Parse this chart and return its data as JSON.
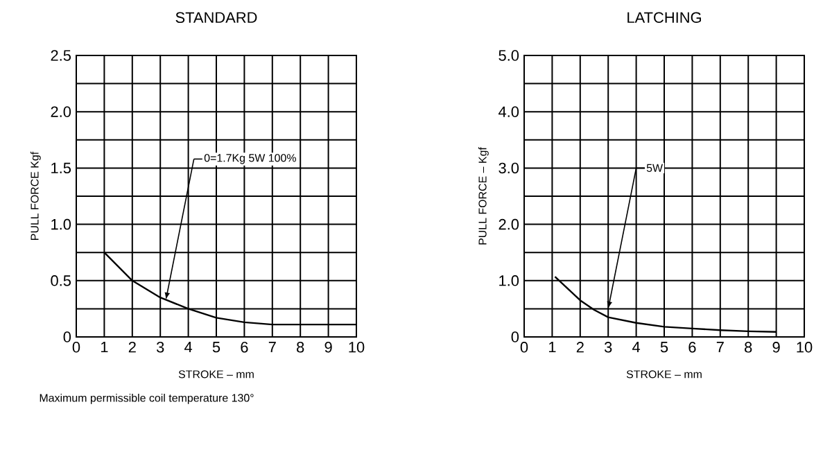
{
  "chart_data": [
    {
      "type": "line",
      "title": "STANDARD",
      "xlabel": "STROKE – mm",
      "ylabel": "PULL FORCE Kgf",
      "x": [
        1,
        2,
        3,
        4,
        5,
        6,
        7,
        8,
        9,
        10
      ],
      "series": [
        {
          "color": "#000000",
          "values": [
            0.75,
            0.5,
            0.35,
            0.25,
            0.17,
            0.13,
            0.11,
            0.11,
            0.11,
            0.11
          ]
        }
      ],
      "xlim": [
        0,
        10
      ],
      "xticks": [
        0,
        1,
        2,
        3,
        4,
        5,
        6,
        7,
        8,
        9,
        10
      ],
      "ylim": [
        0,
        2.5
      ],
      "yticks": [
        0,
        {
          "value": 0.25,
          "label": null
        },
        0.5,
        {
          "value": 0.75,
          "label": null
        },
        {
          "value": 1,
          "label": "1.0"
        },
        {
          "value": 1.25,
          "label": null
        },
        1.5,
        {
          "value": 1.75,
          "label": null
        },
        {
          "value": 2,
          "label": "2.0"
        },
        {
          "value": 2.25,
          "label": null
        },
        2.5
      ],
      "grid": true,
      "marker": "none",
      "line_style": "solid",
      "annotations": [
        {
          "text": "0=1.7Kg   5W 100%",
          "x": 3.2,
          "y": 0.33
        },
        "Maximum permissible coil temperature 130°"
      ]
    },
    {
      "type": "line",
      "title": "LATCHING",
      "xlabel": "STROKE – mm",
      "ylabel": "PULL FORCE – Kgf",
      "x": [
        1.1,
        2,
        2.5,
        3,
        4,
        5,
        6,
        7,
        8,
        9
      ],
      "series": [
        {
          "color": "#000000",
          "values": [
            1.07,
            0.65,
            0.48,
            0.35,
            0.25,
            0.18,
            0.15,
            0.12,
            0.1,
            0.09
          ]
        }
      ],
      "xlim": [
        0,
        10
      ],
      "xticks": [
        0,
        1,
        2,
        3,
        4,
        5,
        6,
        7,
        8,
        9,
        10
      ],
      "ylim": [
        0,
        5
      ],
      "yticks": [
        0,
        {
          "value": 0.5,
          "label": null
        },
        {
          "value": 1,
          "label": "1.0"
        },
        {
          "value": 1.5,
          "label": null
        },
        {
          "value": 2,
          "label": "2.0"
        },
        {
          "value": 2.5,
          "label": null
        },
        {
          "value": 3,
          "label": "3.0"
        },
        {
          "value": 3.5,
          "label": null
        },
        {
          "value": 4,
          "label": "4.0"
        },
        {
          "value": 4.5,
          "label": null
        },
        {
          "value": 5,
          "label": "5.0"
        }
      ],
      "grid": true,
      "marker": "none",
      "line_style": "solid",
      "annotations": [
        {
          "text": "5W",
          "x": 3.0,
          "y": 0.5
        }
      ]
    }
  ]
}
